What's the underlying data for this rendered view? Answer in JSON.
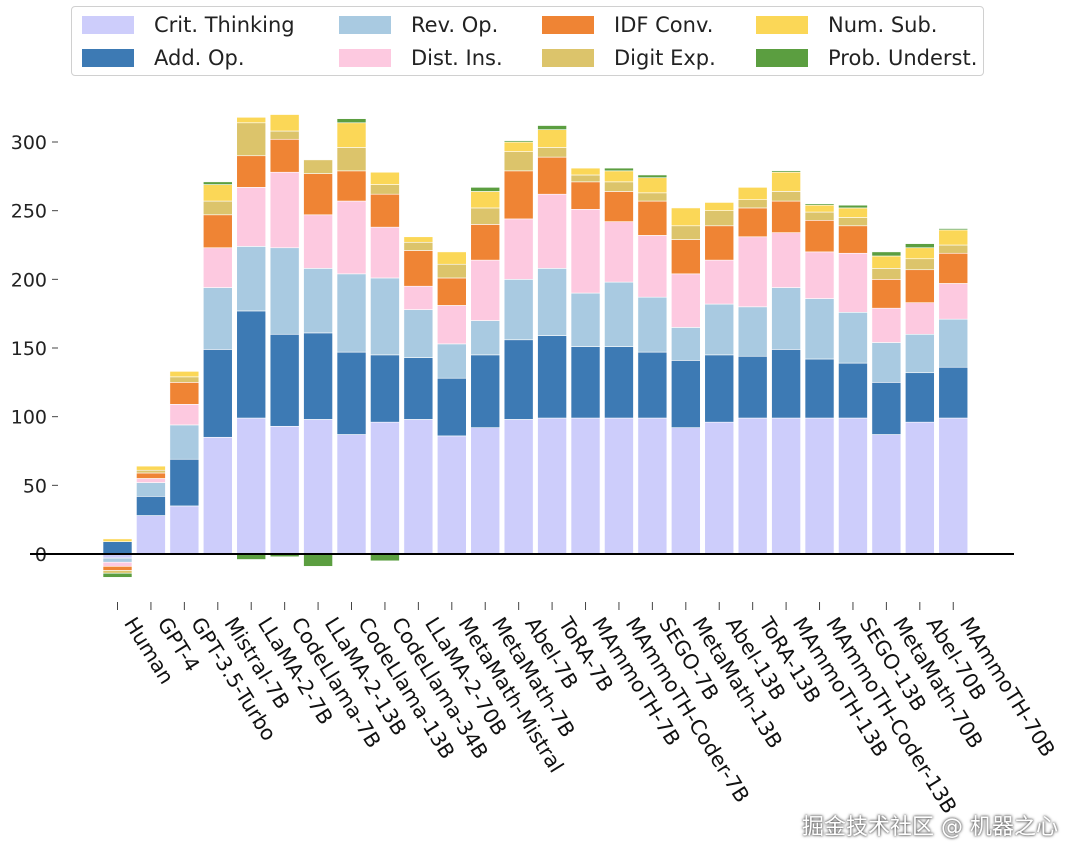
{
  "chart_data": {
    "type": "stacked-bar",
    "title": "",
    "xlabel": "",
    "ylabel": "",
    "ylim": [
      -22,
      335
    ],
    "yticks": [
      0,
      50,
      100,
      150,
      200,
      250,
      300
    ],
    "zero_line": true,
    "legend_position": "top",
    "categories": [
      "Human",
      "GPT-4",
      "GPT-3.5-Turbo",
      "Mistral-7B",
      "LLaMA-2-7B",
      "CodeLlama-7B",
      "LLaMA-2-13B",
      "CodeLlama-13B",
      "CodeLlama-34B",
      "LLaMA-2-70B",
      "MetaMath-Mistral",
      "MetaMath-7B",
      "Abel-7B",
      "ToRA-7B",
      "MAmmoTH-7B",
      "MAmmoTH-Coder-7B",
      "SEGO-7B",
      "MetaMath-13B",
      "Abel-13B",
      "ToRA-13B",
      "MAmmoTH-13B",
      "MAmmoTH-Coder-13B",
      "SEGO-13B",
      "MetaMath-70B",
      "Abel-70B",
      "MAmmoTH-70B"
    ],
    "series": [
      {
        "name": "Crit. Thinking",
        "color": "#cdcdfb",
        "values": [
          -3,
          28,
          35,
          85,
          99,
          93,
          98,
          87,
          96,
          98,
          86,
          92,
          98,
          99,
          99,
          99,
          99,
          92,
          96,
          99,
          99,
          99,
          99,
          87,
          96,
          99
        ]
      },
      {
        "name": "Add. Op.",
        "color": "#3d7ab4",
        "values": [
          9,
          14,
          34,
          64,
          78,
          67,
          63,
          60,
          49,
          45,
          42,
          53,
          58,
          60,
          52,
          52,
          48,
          49,
          49,
          45,
          50,
          43,
          40,
          38,
          36,
          37
        ]
      },
      {
        "name": "Rev. Op.",
        "color": "#a9cae1",
        "values": [
          -3,
          10,
          25,
          45,
          47,
          63,
          47,
          57,
          56,
          35,
          25,
          25,
          44,
          49,
          39,
          47,
          40,
          24,
          37,
          36,
          45,
          44,
          37,
          29,
          28,
          35
        ]
      },
      {
        "name": "Dist. Ins.",
        "color": "#fdc9e0",
        "values": [
          -3,
          3,
          15,
          29,
          43,
          55,
          39,
          53,
          37,
          17,
          28,
          44,
          44,
          54,
          61,
          44,
          45,
          39,
          32,
          51,
          40,
          34,
          43,
          25,
          23,
          26
        ]
      },
      {
        "name": "IDF Conv.",
        "color": "#ef8434",
        "values": [
          -3,
          4,
          16,
          24,
          23,
          24,
          30,
          22,
          24,
          26,
          20,
          26,
          35,
          27,
          20,
          22,
          25,
          25,
          25,
          21,
          23,
          23,
          20,
          21,
          24,
          22
        ]
      },
      {
        "name": "Digit Exp.",
        "color": "#dcc46b",
        "values": [
          -2,
          2,
          4,
          10,
          24,
          6,
          10,
          17,
          7,
          6,
          10,
          12,
          14,
          7,
          5,
          7,
          6,
          10,
          11,
          6,
          7,
          6,
          6,
          8,
          8,
          6
        ]
      },
      {
        "name": "Num. Sub.",
        "color": "#fbd757",
        "values": [
          2,
          3,
          4,
          12,
          4,
          12,
          0,
          18,
          9,
          4,
          9,
          12,
          7,
          13,
          5,
          8,
          11,
          13,
          6,
          9,
          14,
          5,
          7,
          9,
          8,
          11
        ]
      },
      {
        "name": "Prob. Underst.",
        "color": "#5b9e40",
        "values": [
          -3,
          0,
          0,
          2,
          -4,
          -2,
          -9,
          3,
          -5,
          0,
          0,
          3,
          1,
          3,
          0,
          2,
          2,
          0,
          0,
          0,
          1,
          1,
          2,
          3,
          3,
          1
        ]
      }
    ]
  },
  "legend": [
    {
      "label": "Crit. Thinking",
      "color": "#cdcdfb"
    },
    {
      "label": "Add. Op.",
      "color": "#3d7ab4"
    },
    {
      "label": "Rev. Op.",
      "color": "#a9cae1"
    },
    {
      "label": "Dist. Ins.",
      "color": "#fdc9e0"
    },
    {
      "label": "IDF Conv.",
      "color": "#ef8434"
    },
    {
      "label": "Digit Exp.",
      "color": "#dcc46b"
    },
    {
      "label": "Num. Sub.",
      "color": "#fbd757"
    },
    {
      "label": "Prob. Underst.",
      "color": "#5b9e40"
    }
  ],
  "watermark": "掘金技术社区 @ 机器之心"
}
